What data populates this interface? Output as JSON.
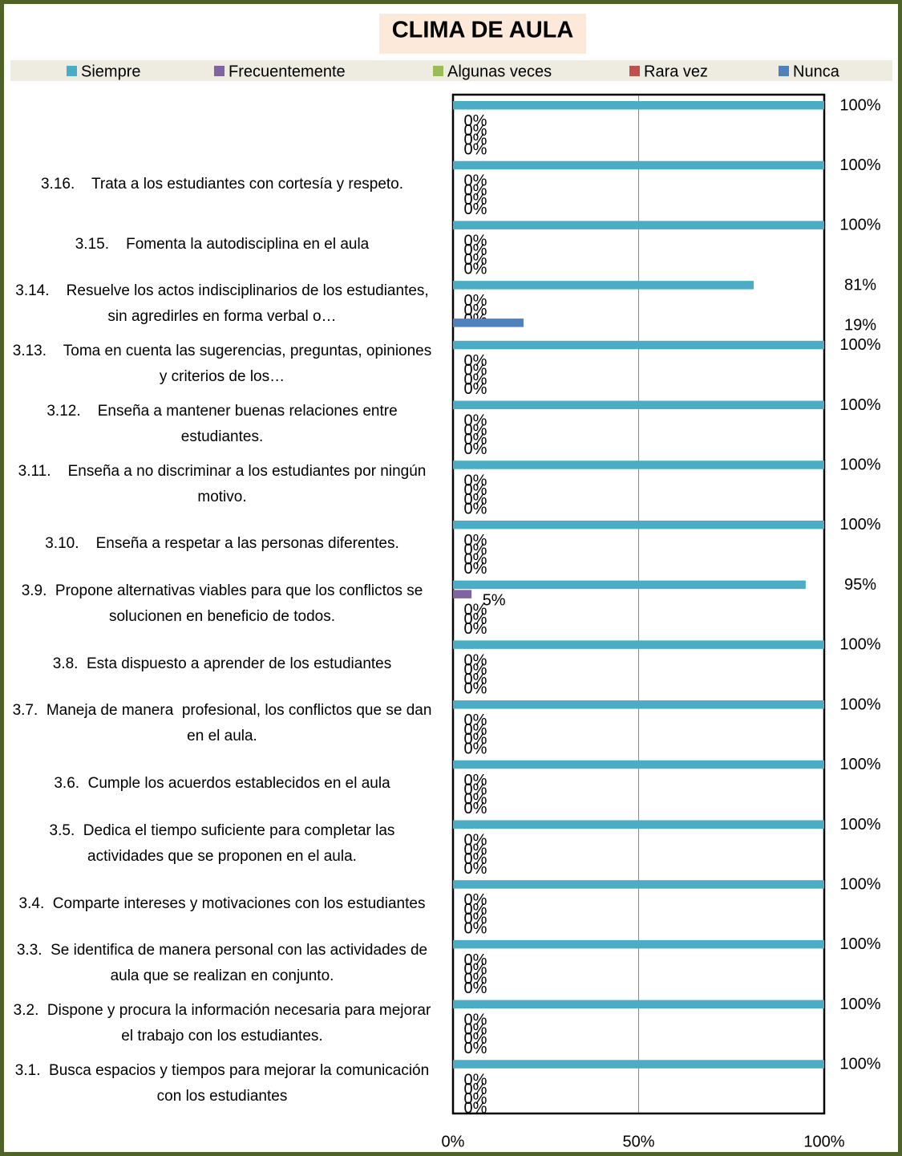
{
  "chart_data": {
    "type": "bar",
    "orientation": "horizontal",
    "title": "CLIMA DE AULA",
    "categories": [
      null,
      "3.16.    Trata a los estudiantes con cortesía y respeto.",
      "3.15.    Fomenta la autodisciplina en el aula",
      "3.14.    Resuelve los actos indisciplinarios de los estudiantes, sin agredirles en forma verbal o…",
      "3.13.    Toma en cuenta las sugerencias, preguntas, opiniones y criterios de los…",
      "3.12.    Enseña a mantener buenas relaciones entre estudiantes.",
      "3.11.    Enseña a no discriminar a los estudiantes por ningún motivo.",
      "3.10.    Enseña a respetar a las personas diferentes.",
      "3.9.  Propone alternativas viables para que los conflictos se solucionen en beneficio de todos.",
      "3.8.  Esta dispuesto a aprender de los estudiantes",
      "3.7.  Maneja de manera  profesional, los conflictos que se dan en el aula.",
      "3.6.  Cumple los acuerdos establecidos en el aula",
      "3.5.  Dedica el tiempo suficiente para completar las actividades que se proponen en el aula.",
      "3.4.  Comparte intereses y motivaciones con los estudiantes",
      "3.3.  Se identifica de manera personal con las actividades de aula que se realizan en conjunto.",
      "3.2.  Dispone y procura la información necesaria para mejorar el trabajo con los estudiantes.",
      "3.1.  Busca espacios y tiempos para mejorar la comunicación con los estudiantes"
    ],
    "series": [
      {
        "name": "Siempre",
        "color": "#4bacc6",
        "values": [
          100,
          100,
          100,
          81,
          100,
          100,
          100,
          100,
          95,
          100,
          100,
          100,
          100,
          100,
          100,
          100,
          100
        ],
        "value_labels": [
          "100%",
          "100%",
          "100%",
          "81%",
          "100%",
          "100%",
          "100%",
          "100%",
          "95%",
          "100%",
          "100%",
          "100%",
          "100%",
          "100%",
          "100%",
          "100%",
          "100%"
        ]
      },
      {
        "name": "Frecuentemente",
        "color": "#8064a2",
        "values": [
          0,
          0,
          0,
          0,
          0,
          0,
          0,
          0,
          5,
          0,
          0,
          0,
          0,
          0,
          0,
          0,
          0
        ],
        "value_labels": [
          "0%",
          "0%",
          "0%",
          "0%",
          "0%",
          "0%",
          "0%",
          "0%",
          "5%",
          "0%",
          "0%",
          "0%",
          "0%",
          "0%",
          "0%",
          "0%",
          "0%"
        ]
      },
      {
        "name": "Algunas veces",
        "color": "#9bbb59",
        "values": [
          0,
          0,
          0,
          0,
          0,
          0,
          0,
          0,
          0,
          0,
          0,
          0,
          0,
          0,
          0,
          0,
          0
        ],
        "value_labels": [
          "0%",
          "0%",
          "0%",
          "0%",
          "0%",
          "0%",
          "0%",
          "0%",
          "0%",
          "0%",
          "0%",
          "0%",
          "0%",
          "0%",
          "0%",
          "0%",
          "0%"
        ]
      },
      {
        "name": "Rara vez",
        "color": "#c0504d",
        "values": [
          0,
          0,
          0,
          0,
          0,
          0,
          0,
          0,
          0,
          0,
          0,
          0,
          0,
          0,
          0,
          0,
          0
        ],
        "value_labels": [
          "0%",
          "0%",
          "0%",
          "0%",
          "0%",
          "0%",
          "0%",
          "0%",
          "0%",
          "0%",
          "0%",
          "0%",
          "0%",
          "0%",
          "0%",
          "0%",
          "0%"
        ]
      },
      {
        "name": "Nunca",
        "color": "#4f81bd",
        "values": [
          0,
          0,
          0,
          19,
          0,
          0,
          0,
          0,
          0,
          0,
          0,
          0,
          0,
          0,
          0,
          0,
          0
        ],
        "value_labels": [
          "0%",
          "0%",
          "0%",
          "19%",
          "0%",
          "0%",
          "0%",
          "0%",
          "0%",
          "0%",
          "0%",
          "0%",
          "0%",
          "0%",
          "0%",
          "0%",
          "0%"
        ]
      }
    ],
    "xlim": [
      0,
      100
    ],
    "xticks": [
      {
        "value": 0,
        "label": "0%"
      },
      {
        "value": 50,
        "label": "50%"
      },
      {
        "value": 100,
        "label": "100%"
      }
    ],
    "grid": true,
    "legend": "top"
  }
}
